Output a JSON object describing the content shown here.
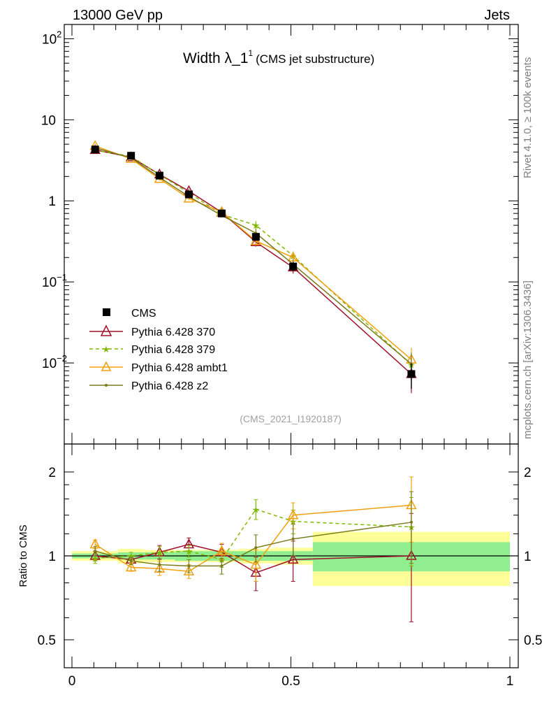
{
  "header": {
    "left": "13000 GeV pp",
    "right": "Jets"
  },
  "side_labels": {
    "rivet": "Rivet 4.1.0, ≥ 100k events",
    "mcplots": "mcplots.cern.ch [arXiv:1306.3436]"
  },
  "chart_data": {
    "type": "line",
    "title": "Width λ_1",
    "title_superscript": "1",
    "title_suffix": "(CMS jet substructure)",
    "watermark": "(CMS_2021_I1920187)",
    "xlim": [
      0,
      1
    ],
    "ylim": [
      0.001,
      150
    ],
    "yscale": "log",
    "x_ticks": [
      "0",
      "0.5",
      "1"
    ],
    "y_ticks": [
      {
        "base": "10",
        "exp": "2",
        "value": 100
      },
      {
        "base": "10",
        "exp": "",
        "value": 10
      },
      {
        "base": "1",
        "exp": "",
        "value": 1
      },
      {
        "base": "10",
        "exp": "−1",
        "value": 0.1
      },
      {
        "base": "10",
        "exp": "−2",
        "value": 0.01
      }
    ],
    "x": [
      0.053,
      0.135,
      0.2,
      0.267,
      0.342,
      0.42,
      0.505,
      0.775
    ],
    "bin_edges": [
      0,
      0.105,
      0.165,
      0.235,
      0.3,
      0.38,
      0.46,
      0.55,
      1.0
    ],
    "data": {
      "name": "CMS",
      "values": [
        4.3,
        3.6,
        2.05,
        1.2,
        0.7,
        0.36,
        0.155,
        0.0073
      ],
      "errors_up": [
        0.3,
        0.2,
        0.12,
        0.08,
        0.05,
        0.04,
        0.02,
        0.0025
      ],
      "stat_band": [
        0.02,
        0.03,
        0.03,
        0.04,
        0.04,
        0.04,
        0.04,
        0.12
      ],
      "total_band": [
        0.04,
        0.06,
        0.05,
        0.05,
        0.05,
        0.06,
        0.07,
        0.22
      ]
    },
    "series": [
      {
        "name": "Pythia 6.428 370",
        "color": "#a0102a",
        "marker": "triangle-open",
        "dash": "",
        "values": [
          4.25,
          3.45,
          2.12,
          1.32,
          0.72,
          0.31,
          0.151,
          0.0073
        ],
        "ratio": [
          1.0,
          0.97,
          1.03,
          1.1,
          1.03,
          0.87,
          0.97,
          1.0
        ],
        "ratio_err": [
          0.04,
          0.03,
          0.06,
          0.06,
          0.07,
          0.12,
          0.16,
          0.42
        ]
      },
      {
        "name": "Pythia 6.428 379",
        "color": "#7fb800",
        "marker": "star",
        "dash": "5,4",
        "values": [
          4.2,
          3.55,
          2.1,
          1.26,
          0.68,
          0.5,
          0.21,
          0.0095
        ],
        "ratio": [
          0.98,
          1.0,
          1.03,
          1.04,
          0.97,
          1.47,
          1.33,
          1.27
        ],
        "ratio_err": [
          0.04,
          0.03,
          0.05,
          0.05,
          0.06,
          0.12,
          0.13,
          0.35
        ]
      },
      {
        "name": "Pythia 6.428 ambt1",
        "color": "#f0a010",
        "marker": "triangle-open",
        "dash": "",
        "values": [
          4.75,
          3.3,
          1.87,
          1.07,
          0.73,
          0.32,
          0.2,
          0.011
        ],
        "ratio": [
          1.1,
          0.91,
          0.9,
          0.88,
          1.04,
          0.93,
          1.4,
          1.52
        ],
        "ratio_err": [
          0.04,
          0.03,
          0.05,
          0.05,
          0.07,
          0.12,
          0.15,
          0.4
        ]
      },
      {
        "name": "Pythia 6.428 z2",
        "color": "#7a7a1a",
        "marker": "dot",
        "dash": "",
        "values": [
          4.5,
          3.4,
          1.95,
          1.13,
          0.66,
          0.4,
          0.165,
          0.0097
        ],
        "ratio": [
          1.04,
          0.96,
          0.93,
          0.92,
          0.92,
          1.07,
          1.15,
          1.32
        ],
        "ratio_err": [
          0.04,
          0.03,
          0.05,
          0.05,
          0.06,
          0.12,
          0.15,
          0.38
        ]
      }
    ],
    "ratio_panel": {
      "ylabel": "Ratio to CMS",
      "ylim": [
        0.4,
        2.4
      ],
      "y_ticks": [
        {
          "label": "0.5",
          "value": 0.5
        },
        {
          "label": "1",
          "value": 1
        },
        {
          "label": "2",
          "value": 2
        }
      ]
    },
    "legend": {
      "placement": "lower-left",
      "entries": [
        "CMS",
        "Pythia 6.428 370",
        "Pythia 6.428 379",
        "Pythia 6.428 ambt1",
        "Pythia 6.428 z2"
      ]
    },
    "colors": {
      "band_stat": "#90ee90",
      "band_total": "#ffff99"
    }
  }
}
